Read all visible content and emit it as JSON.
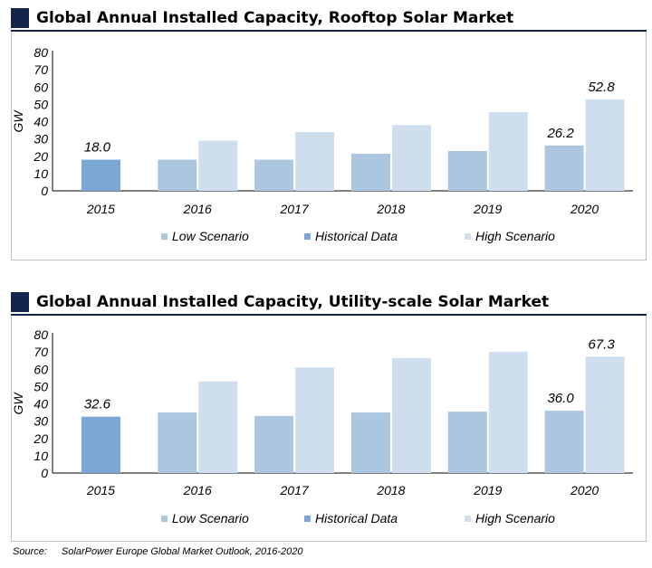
{
  "source": {
    "label": "Source:",
    "text": "SolarPower Europe Global Market Outlook, 2016-2020"
  },
  "colors": {
    "low": "#adc6e0",
    "historical": "#7aa7d3",
    "high": "#cfdeee",
    "title_square": "#14254c"
  },
  "chart_data": [
    {
      "type": "bar",
      "title": "Global Annual Installed Capacity, Rooftop Solar Market",
      "ylabel": "GW",
      "ylim": [
        0,
        80
      ],
      "yticks": [
        "0",
        "10",
        "20",
        "30",
        "40",
        "50",
        "60",
        "70",
        "80"
      ],
      "categories": [
        "2015",
        "2016",
        "2017",
        "2018",
        "2019",
        "2020"
      ],
      "series": [
        {
          "name": "Low Scenario",
          "values": [
            null,
            18,
            18,
            21.5,
            23,
            26.2
          ]
        },
        {
          "name": "Historical Data",
          "values": [
            18.0,
            null,
            null,
            null,
            null,
            null
          ]
        },
        {
          "name": "High Scenario",
          "values": [
            null,
            29,
            34,
            38,
            45.5,
            52.8
          ]
        }
      ],
      "data_labels": [
        {
          "category": "2015",
          "series": "Historical Data",
          "text": "18.0"
        },
        {
          "category": "2020",
          "series": "Low Scenario",
          "text": "26.2"
        },
        {
          "category": "2020",
          "series": "High Scenario",
          "text": "52.8"
        }
      ],
      "legend": [
        "Low Scenario",
        "Historical Data",
        "High Scenario"
      ],
      "legend_position": "bottom"
    },
    {
      "type": "bar",
      "title": "Global Annual Installed Capacity, Utility-scale Solar Market",
      "ylabel": "GW",
      "ylim": [
        0,
        80
      ],
      "yticks": [
        "0",
        "10",
        "20",
        "30",
        "40",
        "50",
        "60",
        "70",
        "80"
      ],
      "categories": [
        "2015",
        "2016",
        "2017",
        "2018",
        "2019",
        "2020"
      ],
      "series": [
        {
          "name": "Low Scenario",
          "values": [
            null,
            35,
            33,
            35,
            35.5,
            36.0
          ]
        },
        {
          "name": "Historical Data",
          "values": [
            32.6,
            null,
            null,
            null,
            null,
            null
          ]
        },
        {
          "name": "High Scenario",
          "values": [
            null,
            53,
            61,
            66.5,
            70,
            67.3
          ]
        }
      ],
      "data_labels": [
        {
          "category": "2015",
          "series": "Historical Data",
          "text": "32.6"
        },
        {
          "category": "2020",
          "series": "Low Scenario",
          "text": "36.0"
        },
        {
          "category": "2020",
          "series": "High Scenario",
          "text": "67.3"
        }
      ],
      "legend": [
        "Low Scenario",
        "Historical Data",
        "High Scenario"
      ],
      "legend_position": "bottom"
    }
  ]
}
